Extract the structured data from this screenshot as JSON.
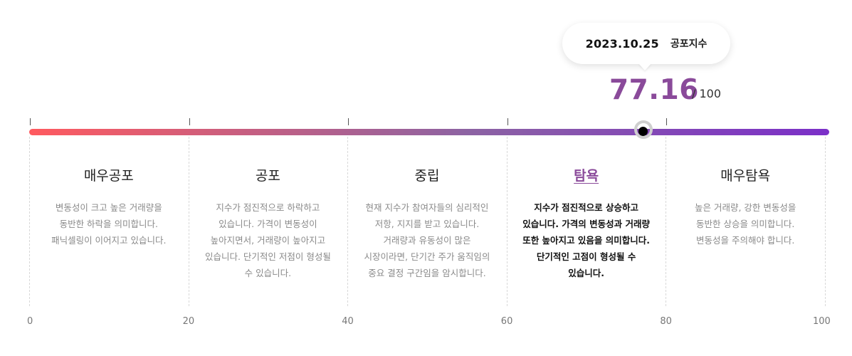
{
  "tooltip": {
    "date": "2023.10.25",
    "label": "공포지수"
  },
  "score": {
    "value": "77.16",
    "max": "/ 100"
  },
  "gauge": {
    "min": 0,
    "max": 100,
    "value": 77.16,
    "gradient": [
      "#ff5a5f",
      "#8c63a3",
      "#7b2fc8"
    ]
  },
  "zones": [
    {
      "title": "매우공포",
      "desc": "변동성이 크고 높은 거래량을 동반한 하락을 의미합니다. 패닉셀링이 이어지고 있습니다."
    },
    {
      "title": "공포",
      "desc": "지수가 점진적으로 하락하고 있습니다. 가격이 변동성이 높아지면서, 거래량이 높아지고 있습니다. 단기적인 저점이 형성될 수 있습니다."
    },
    {
      "title": "중립",
      "desc": "현재 지수가 참여자들의 심리적인 저항, 지지를 받고 있습니다. 거래량과 유동성이 많은 시장이라면, 단기간 주가 움직임의 중요 결정 구간임을 암시합니다."
    },
    {
      "title": "탐욕",
      "desc": "지수가 점진적으로 상승하고 있습니다. 가격의 변동성과 거래량 또한 높아지고 있음을 의미합니다. 단기적인 고점이 형성될 수 있습니다."
    },
    {
      "title": "매우탐욕",
      "desc": "높은 거래량, 강한 변동성을 동반한 상승을 의미합니다. 변동성을 주의해야 합니다."
    }
  ],
  "active_zone": "탐욕",
  "axis": [
    "0",
    "20",
    "40",
    "60",
    "80",
    "100"
  ]
}
